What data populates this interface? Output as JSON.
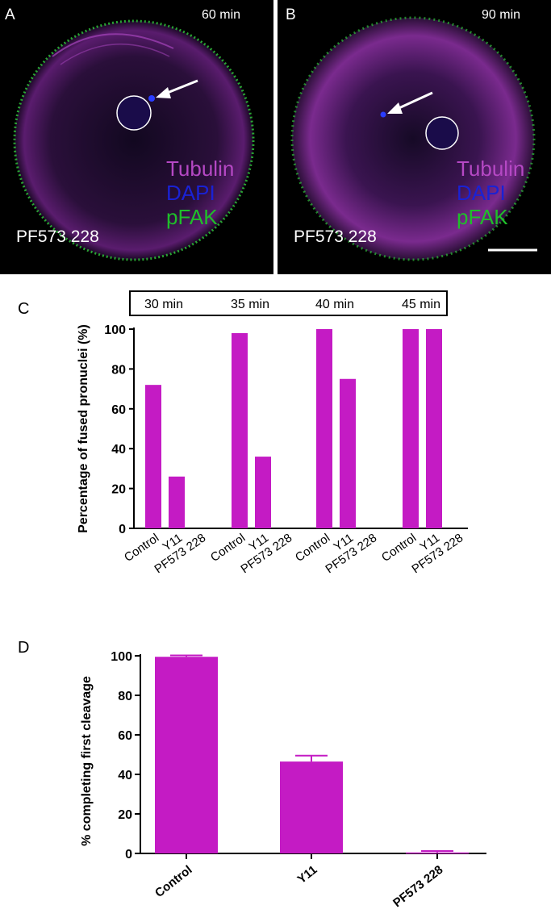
{
  "panel_a": {
    "letter": "A",
    "time": "60 min",
    "legend": [
      "Tubulin",
      "DAPI",
      "pFAK"
    ],
    "treatment": "PF573 228"
  },
  "panel_b": {
    "letter": "B",
    "time": "90 min",
    "legend": [
      "Tubulin",
      "DAPI",
      "pFAK"
    ],
    "treatment": "PF573 228"
  },
  "colors": {
    "bar": "#c41bc4",
    "tubulin": "#b548c4",
    "dapi": "#1a22d4",
    "pfak": "#1fbf2a"
  },
  "chart_data": [
    {
      "panel": "C",
      "type": "bar",
      "ylabel": "Percentage of fused pronuclei (%)",
      "ylim": [
        0,
        100
      ],
      "yticks": [
        0,
        20,
        40,
        60,
        80,
        100
      ],
      "groups": [
        {
          "label": "30 min",
          "categories": [
            "Control",
            "Y11",
            "PF573 228"
          ],
          "values": [
            72,
            26,
            0
          ]
        },
        {
          "label": "35 min",
          "categories": [
            "Control",
            "Y11",
            "PF573 228"
          ],
          "values": [
            98,
            36,
            0
          ]
        },
        {
          "label": "40 min",
          "categories": [
            "Control",
            "Y11",
            "PF573 228"
          ],
          "values": [
            100,
            75,
            0
          ]
        },
        {
          "label": "45 min",
          "categories": [
            "Control",
            "Y11",
            "PF573 228"
          ],
          "values": [
            100,
            100,
            0
          ]
        }
      ]
    },
    {
      "panel": "D",
      "type": "bar",
      "ylabel": "% completing first cleavage",
      "ylim": [
        0,
        100
      ],
      "yticks": [
        0,
        20,
        40,
        60,
        80,
        100
      ],
      "categories": [
        "Control",
        "Y11",
        "PF573 228"
      ],
      "values": [
        99.5,
        46.5,
        0.5
      ],
      "errors": [
        0.7,
        3,
        0.7
      ]
    }
  ]
}
